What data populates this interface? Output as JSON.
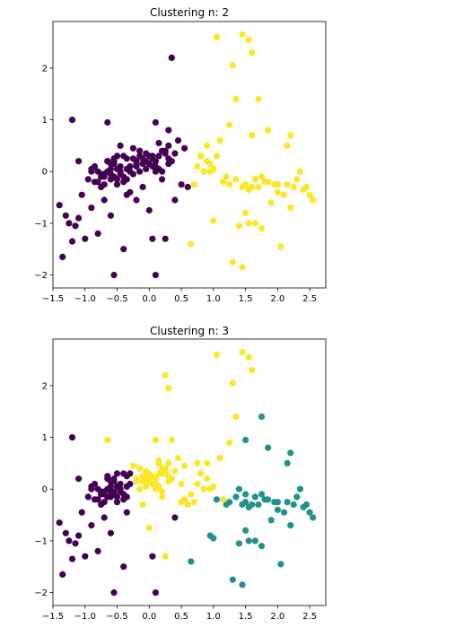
{
  "chart_data": [
    {
      "type": "scatter",
      "title": "Clustering n: 2",
      "xlim": [
        -1.5,
        2.75
      ],
      "ylim": [
        -2.25,
        2.9
      ],
      "xticks": [
        -1.5,
        -1.0,
        -0.5,
        0.0,
        0.5,
        1.0,
        1.5,
        2.0,
        2.5
      ],
      "yticks": [
        -2,
        -1,
        0,
        1,
        2
      ],
      "xtick_labels": [
        "−1.5",
        "−1.0",
        "−0.5",
        "0.0",
        "0.5",
        "1.0",
        "1.5",
        "2.0",
        "2.5"
      ],
      "ytick_labels": [
        "−2",
        "−1",
        "0",
        "1",
        "2"
      ],
      "grid": false,
      "series": [
        {
          "color": "#440154",
          "x": [
            -1.2,
            -0.65,
            0.1,
            0.3,
            0.35,
            -1.4,
            -1.05,
            -0.9,
            -1.1,
            -0.6,
            -1.35,
            -1.2,
            -1.0,
            -0.55,
            -0.4,
            0.05,
            0.1,
            -0.8,
            -1.15,
            -0.3,
            0.6,
            0.5,
            0.4,
            0.25,
            -0.1,
            -0.2,
            -0.95,
            -1.1,
            -0.9,
            -0.75,
            -1.3,
            -0.45,
            0.15,
            -0.05,
            -0.85,
            -1.25,
            -0.7,
            -0.35,
            0.0,
            0.2,
            0.55,
            0.45,
            0.3,
            -0.15,
            -0.65,
            -0.5,
            -0.25,
            0.05,
            -0.6,
            -0.8,
            -0.4,
            0.1,
            -0.3,
            -0.55,
            -0.2,
            0.0,
            0.3,
            0.15,
            -0.45,
            -0.7,
            -0.35,
            -0.1,
            0.25,
            -0.5,
            -0.65,
            -0.75,
            -0.3,
            -0.05,
            0.2,
            -0.6,
            -0.4,
            -0.15,
            0.1,
            -0.85,
            -0.9,
            -0.55,
            -0.25,
            0.35,
            0.05,
            -0.35,
            -0.7,
            -0.5,
            -0.2,
            0.4,
            0.15,
            -0.6,
            -0.45,
            -0.1,
            0.0,
            -0.65,
            -0.3,
            0.25,
            -0.8,
            -0.4,
            -0.55,
            0.1,
            -0.2,
            -0.05,
            -0.75,
            -0.5,
            0.3,
            -0.15,
            -0.35,
            -0.6,
            0.2,
            -0.45,
            -0.7,
            -0.25,
            0.05,
            -0.55
          ],
          "y": [
            1.0,
            0.95,
            0.95,
            0.8,
            2.2,
            -0.65,
            -0.45,
            -0.7,
            -0.9,
            -0.85,
            -1.65,
            -1.35,
            -1.3,
            -2.0,
            -1.5,
            -1.3,
            -2.0,
            -1.2,
            -1.05,
            -0.4,
            -0.3,
            -0.25,
            -0.55,
            -1.3,
            -0.3,
            -0.55,
            -0.15,
            0.2,
            0.0,
            -0.3,
            -0.85,
            0.5,
            0.55,
            0.35,
            0.1,
            -1.0,
            -0.55,
            -0.45,
            -0.75,
            -0.15,
            0.45,
            0.6,
            0.5,
            0.4,
            0.2,
            0.3,
            0.45,
            0.25,
            -0.15,
            -0.2,
            -0.1,
            0.1,
            0.0,
            0.15,
            0.2,
            0.3,
            0.25,
            0.05,
            -0.05,
            -0.1,
            0.05,
            0.15,
            0.35,
            -0.25,
            0.0,
            -0.05,
            0.1,
            0.2,
            0.4,
            0.15,
            0.3,
            0.0,
            0.0,
            -0.2,
            0.05,
            -0.1,
            0.25,
            0.2,
            0.1,
            -0.15,
            -0.25,
            0.05,
            0.1,
            0.35,
            0.3,
            -0.05,
            0.0,
            0.25,
            0.15,
            0.2,
            0.1,
            0.4,
            0.0,
            -0.2,
            0.2,
            0.2,
            0.15,
            0.05,
            -0.1,
            -0.15,
            0.15,
            0.3,
            0.25,
            0.05,
            0.0,
            0.1,
            -0.05,
            -0.05,
            0.3,
            0.25
          ]
        },
        {
          "color": "#fde725",
          "x": [
            1.05,
            1.45,
            1.55,
            1.6,
            1.3,
            1.35,
            1.7,
            1.25,
            1.85,
            1.6,
            2.2,
            2.15,
            1.1,
            0.9,
            0.95,
            2.35,
            2.5,
            2.55,
            1.5,
            1.55,
            1.75,
            1.65,
            2.05,
            2.2,
            1.0,
            1.4,
            1.45,
            0.65,
            1.3,
            1.45,
            1.8,
            2.0,
            2.3,
            2.4,
            2.1,
            1.9,
            1.7,
            1.5,
            1.15,
            1.2,
            1.35,
            0.8,
            0.75,
            0.85,
            1.0,
            0.9,
            0.7,
            1.6,
            1.85,
            2.25,
            2.45,
            1.95,
            1.75,
            1.25,
            1.05,
            0.95,
            1.55,
            2.0,
            2.15,
            1.65
          ],
          "y": [
            2.6,
            2.65,
            2.55,
            2.3,
            2.05,
            1.4,
            1.4,
            0.9,
            0.8,
            0.7,
            0.7,
            0.5,
            0.6,
            0.5,
            0.0,
            0.0,
            -0.45,
            -0.55,
            -0.8,
            -1.0,
            -1.1,
            -1.0,
            -1.45,
            -0.7,
            -0.95,
            -1.05,
            -1.85,
            -1.4,
            -1.75,
            -0.3,
            -0.2,
            -0.25,
            -0.15,
            -0.35,
            -0.45,
            -0.6,
            -0.3,
            -0.25,
            -0.2,
            -0.1,
            -0.15,
            0.3,
            0.1,
            0.0,
            0.05,
            0.2,
            -0.25,
            -0.3,
            -0.2,
            -0.3,
            -0.3,
            -0.25,
            -0.1,
            -0.25,
            0.3,
            0.15,
            -0.35,
            -0.4,
            -0.25,
            -0.15
          ]
        }
      ]
    },
    {
      "type": "scatter",
      "title": "Clustering n: 3",
      "xlim": [
        -1.5,
        2.75
      ],
      "ylim": [
        -2.25,
        2.9
      ],
      "xticks": [
        -1.5,
        -1.0,
        -0.5,
        0.0,
        0.5,
        1.0,
        1.5,
        2.0,
        2.5
      ],
      "yticks": [
        -2,
        -1,
        0,
        1,
        2
      ],
      "xtick_labels": [
        "−1.5",
        "−1.0",
        "−0.5",
        "0.0",
        "0.5",
        "1.0",
        "1.5",
        "2.0",
        "2.5"
      ],
      "ytick_labels": [
        "−2",
        "−1",
        "0",
        "1",
        "2"
      ],
      "grid": false,
      "series": [
        {
          "color": "#440154",
          "x": [
            -1.2,
            -1.4,
            -1.05,
            -0.9,
            -1.1,
            -0.6,
            -1.35,
            -1.2,
            -1.0,
            -0.55,
            -0.4,
            -0.8,
            -1.15,
            -0.95,
            -1.1,
            -0.9,
            -0.75,
            -1.3,
            -0.85,
            -1.25,
            -0.7,
            -0.35,
            -0.65,
            -0.5,
            -0.6,
            -0.8,
            -0.4,
            -0.55,
            -0.45,
            -0.7,
            -0.35,
            -0.5,
            -0.65,
            -0.75,
            -0.3,
            -0.6,
            -0.4,
            -0.85,
            -0.9,
            -0.55,
            -0.35,
            -0.7,
            -0.5,
            -0.6,
            -0.45,
            -0.65,
            -0.8,
            -0.4,
            -0.55,
            -0.75,
            -0.5,
            -0.35,
            -0.6,
            -0.45,
            -0.7,
            -0.55,
            -0.3,
            -0.65,
            0.05,
            0.1,
            0.4
          ],
          "y": [
            1.0,
            -0.65,
            -0.45,
            -0.7,
            -0.9,
            -0.85,
            -1.65,
            -1.35,
            -1.3,
            -2.0,
            -1.5,
            -1.2,
            -1.05,
            -0.15,
            0.2,
            0.0,
            -0.3,
            -0.85,
            0.1,
            -1.0,
            -0.55,
            -0.45,
            0.2,
            0.3,
            -0.15,
            -0.2,
            -0.1,
            0.15,
            -0.05,
            -0.1,
            0.05,
            -0.25,
            0.0,
            -0.05,
            0.1,
            0.15,
            0.3,
            -0.2,
            0.05,
            -0.1,
            -0.15,
            -0.25,
            0.05,
            -0.05,
            0.0,
            -0.15,
            0.0,
            -0.2,
            0.2,
            -0.1,
            -0.15,
            0.25,
            0.05,
            0.1,
            -0.05,
            -0.05,
            0.3,
            0.25,
            -1.3,
            -2.0,
            -0.55
          ]
        },
        {
          "color": "#21918c",
          "x": [
            1.75,
            1.5,
            1.85,
            2.2,
            2.15,
            2.35,
            2.5,
            2.55,
            1.5,
            1.55,
            1.75,
            1.65,
            2.05,
            2.2,
            1.0,
            1.4,
            1.45,
            0.65,
            1.3,
            1.45,
            1.8,
            2.0,
            2.3,
            2.4,
            2.1,
            1.9,
            1.7,
            1.5,
            1.35,
            1.6,
            1.85,
            2.25,
            2.45,
            1.95,
            1.75,
            1.25,
            1.55,
            2.0,
            2.15,
            1.65,
            1.2,
            0.95,
            1.05,
            1.4,
            1.5
          ],
          "y": [
            1.4,
            0.95,
            0.8,
            0.7,
            0.5,
            0.0,
            -0.45,
            -0.55,
            -0.8,
            -1.0,
            -1.1,
            -1.0,
            -1.45,
            -0.7,
            -0.95,
            -1.05,
            -1.85,
            -1.4,
            -1.75,
            -0.3,
            -0.2,
            -0.25,
            -0.15,
            -0.35,
            -0.45,
            -0.6,
            -0.3,
            -0.25,
            -0.15,
            -0.3,
            -0.2,
            -0.3,
            -0.3,
            -0.25,
            -0.1,
            -0.25,
            -0.35,
            -0.4,
            -0.25,
            -0.15,
            -0.3,
            -0.9,
            -0.2,
            0.0,
            -0.1
          ]
        },
        {
          "color": "#fde725",
          "x": [
            1.05,
            1.45,
            1.55,
            1.6,
            1.3,
            1.35,
            0.25,
            0.3,
            0.35,
            0.1,
            -0.65,
            0.15,
            0.6,
            0.5,
            0.25,
            -0.1,
            0.15,
            -0.05,
            0.0,
            0.2,
            0.55,
            0.45,
            0.3,
            -0.15,
            -0.25,
            0.05,
            0.1,
            -0.2,
            0.0,
            0.3,
            0.15,
            -0.1,
            0.25,
            -0.05,
            0.2,
            -0.15,
            0.1,
            0.35,
            0.05,
            0.4,
            0.15,
            -0.1,
            0.0,
            0.25,
            0.1,
            -0.2,
            -0.05,
            0.3,
            0.2,
            0.05,
            0.8,
            0.75,
            0.85,
            1.0,
            0.9,
            0.7,
            1.15,
            1.1,
            0.9,
            0.95,
            1.25,
            0.65,
            0.55,
            0.5,
            0.75,
            0.2
          ],
          "y": [
            2.6,
            2.65,
            2.55,
            2.3,
            2.05,
            1.4,
            2.2,
            1.95,
            0.95,
            0.95,
            0.95,
            0.55,
            -0.3,
            -0.25,
            -1.3,
            -0.3,
            0.5,
            0.35,
            -0.75,
            -0.15,
            0.45,
            0.6,
            0.5,
            0.4,
            0.45,
            0.25,
            0.1,
            0.2,
            0.3,
            0.25,
            0.05,
            0.15,
            0.35,
            0.2,
            0.4,
            0.0,
            0.0,
            0.2,
            0.1,
            0.35,
            0.3,
            0.25,
            0.15,
            0.4,
            0.2,
            0.15,
            0.05,
            0.15,
            0.3,
            0.1,
            0.3,
            0.1,
            0.0,
            0.05,
            0.2,
            -0.25,
            -0.2,
            0.6,
            0.5,
            0.0,
            0.9,
            -0.1,
            -0.2,
            0.1,
            0.5,
            -0.05
          ]
        }
      ]
    }
  ]
}
